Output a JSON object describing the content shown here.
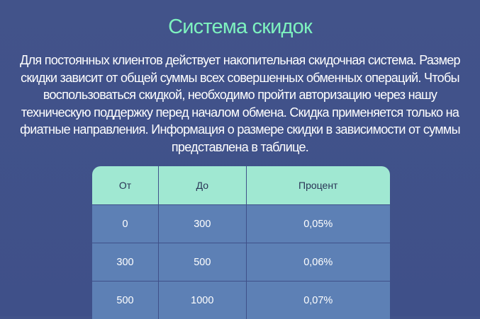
{
  "title": "Система скидок",
  "description_lines": [
    "Для постоянных клиентов действует накопительная скидочная система. Размер",
    "скидки зависит от общей суммы всех совершенных обменных операций. Чтобы",
    "воспользоваться скидкой, необходимо пройти авторизацию через нашу",
    "техническую поддержку перед началом обмена. Скидка применяется только на",
    "фиатные направления. Информация о размере скидки в зависимости от суммы",
    "представлена в таблице."
  ],
  "table": {
    "headers": [
      "От",
      "До",
      "Процент"
    ],
    "rows": [
      [
        "0",
        "300",
        "0,05%"
      ],
      [
        "300",
        "500",
        "0,06%"
      ],
      [
        "500",
        "1000",
        "0,07%"
      ]
    ]
  },
  "colors": {
    "accent": "#7ef2bf",
    "header_bg": "#a0e8d2",
    "row_bg": "#5d80b5",
    "page_bg": "#42538a"
  }
}
